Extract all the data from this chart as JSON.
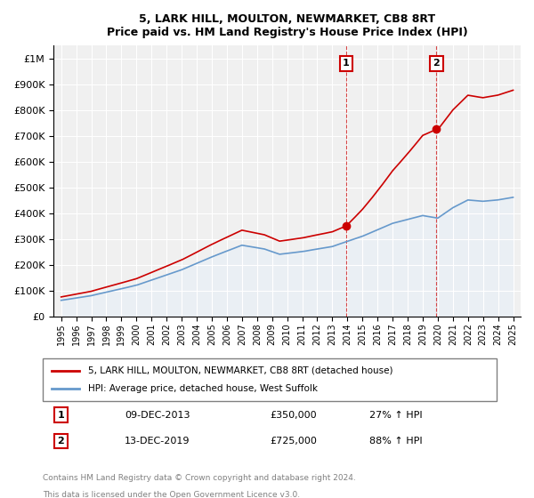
{
  "title": "5, LARK HILL, MOULTON, NEWMARKET, CB8 8RT",
  "subtitle": "Price paid vs. HM Land Registry's House Price Index (HPI)",
  "ylabel_ticks": [
    "£0",
    "£100K",
    "£200K",
    "£300K",
    "£400K",
    "£500K",
    "£600K",
    "£700K",
    "£800K",
    "£900K",
    "£1M"
  ],
  "ytick_values": [
    0,
    100000,
    200000,
    300000,
    400000,
    500000,
    600000,
    700000,
    800000,
    900000,
    1000000
  ],
  "ylim": [
    0,
    1050000
  ],
  "year_start": 1995,
  "year_end": 2025,
  "legend_line1": "5, LARK HILL, MOULTON, NEWMARKET, CB8 8RT (detached house)",
  "legend_line2": "HPI: Average price, detached house, West Suffolk",
  "annotation1_label": "1",
  "annotation1_date": "09-DEC-2013",
  "annotation1_price": "£350,000",
  "annotation1_hpi": "27% ↑ HPI",
  "annotation2_label": "2",
  "annotation2_date": "13-DEC-2019",
  "annotation2_price": "£725,000",
  "annotation2_hpi": "88% ↑ HPI",
  "footnote1": "Contains HM Land Registry data © Crown copyright and database right 2024.",
  "footnote2": "This data is licensed under the Open Government Licence v3.0.",
  "red_color": "#cc0000",
  "blue_color": "#6699cc",
  "background_color": "#ffffff",
  "plot_bg_color": "#f0f0f0",
  "annotation_box_color": "#ffcccc",
  "hpi_shading_color": "#ddeeff"
}
